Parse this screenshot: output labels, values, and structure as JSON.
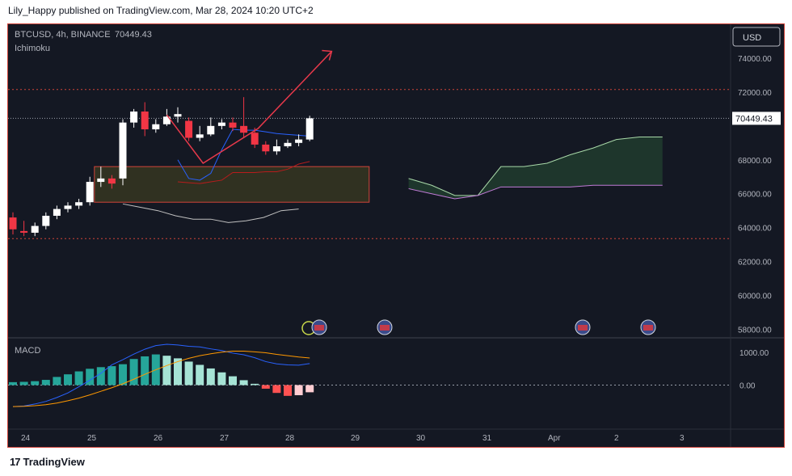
{
  "header": {
    "text": "Lily_Happy published on TradingView.com, Mar 28, 2024 10:20 UTC+2"
  },
  "footer": {
    "logo": "17",
    "brand": "TradingView"
  },
  "colors": {
    "background": "#141823",
    "up_candle": "#ffffff",
    "down_candle": "#f23645",
    "price_axis_text": "#b2b5be",
    "arrow": "#e8394b",
    "cloud_bull": "#1f3a2e",
    "cloud_bear": "#3a3026",
    "kumo_box": "#4a4a2a",
    "lagging": "#c0c0c0",
    "macd_line": "#2962ff",
    "signal_line": "#ff9800",
    "hist_pos": "#a6e3d5",
    "hist_pos_strong": "#26a69a",
    "hist_neg": "#ff5252",
    "hist_neg_weak": "#ffcdd2"
  },
  "chart_data": [
    {
      "type": "candlestick",
      "title": "BTCUSD, 4h, BINANCE",
      "last_value": "70449.43",
      "indicator_label": "Ichimoku",
      "currency": "USD",
      "price_axis_labels": [
        "74000.00",
        "72000.00",
        "70449.43",
        "68000.00",
        "66000.00",
        "64000.00",
        "62000.00",
        "60000.00",
        "58000.00"
      ],
      "time_axis_labels": [
        "24",
        "25",
        "26",
        "27",
        "28",
        "29",
        "30",
        "31",
        "Apr",
        "2",
        "3"
      ],
      "ylim": [
        57500,
        76000
      ],
      "x": [
        "Mar 23 20:00",
        "Mar 24 00:00",
        "Mar 24 04:00",
        "Mar 24 08:00",
        "Mar 24 12:00",
        "Mar 24 16:00",
        "Mar 24 20:00",
        "Mar 25 00:00",
        "Mar 25 04:00",
        "Mar 25 08:00",
        "Mar 25 12:00",
        "Mar 25 16:00",
        "Mar 25 20:00",
        "Mar 26 00:00",
        "Mar 26 04:00",
        "Mar 26 08:00",
        "Mar 26 12:00",
        "Mar 26 16:00",
        "Mar 26 20:00",
        "Mar 27 00:00",
        "Mar 27 04:00",
        "Mar 27 08:00",
        "Mar 27 12:00",
        "Mar 27 16:00",
        "Mar 27 20:00",
        "Mar 28 00:00",
        "Mar 28 04:00",
        "Mar 28 08:00"
      ],
      "open": [
        64600,
        63800,
        63700,
        64100,
        64700,
        65100,
        65300,
        65500,
        66700,
        66900,
        66900,
        70200,
        70850,
        69800,
        70100,
        70550,
        70300,
        69300,
        69500,
        70000,
        70200,
        70000,
        69600,
        68900,
        68500,
        68800,
        69000,
        69200
      ],
      "close": [
        63900,
        63700,
        64100,
        64700,
        65100,
        65300,
        65500,
        66700,
        66900,
        66600,
        70200,
        70850,
        69800,
        70100,
        70550,
        70700,
        69300,
        69500,
        70000,
        70200,
        69900,
        69600,
        68900,
        68500,
        68800,
        69000,
        69200,
        70449.43
      ],
      "high": [
        64900,
        64400,
        64300,
        64900,
        65300,
        65500,
        65700,
        67000,
        67600,
        67100,
        70400,
        71000,
        71400,
        70400,
        71000,
        71100,
        70500,
        70000,
        70500,
        70400,
        70500,
        71700,
        69900,
        69100,
        69200,
        69200,
        69500,
        70600
      ],
      "low": [
        63600,
        63500,
        63500,
        63900,
        64500,
        64900,
        65100,
        65300,
        66400,
        66300,
        66500,
        69900,
        69400,
        69600,
        70000,
        70200,
        69100,
        69100,
        69400,
        69800,
        69700,
        69300,
        68700,
        68300,
        68300,
        68700,
        68800,
        69100
      ],
      "ichimoku": {
        "tenkan": [
          68000,
          66900,
          66800,
          67200,
          68600,
          69800,
          69750,
          69750,
          69650,
          69550,
          69500,
          69450,
          69400
        ],
        "kijun": [
          66700,
          66650,
          66600,
          66700,
          66800,
          67250,
          67250,
          67250,
          67300,
          67300,
          67450,
          67750,
          67900
        ],
        "span_a_future": [
          66900,
          66500,
          65900,
          65900,
          67600,
          67600,
          67800,
          68300,
          68700,
          69200,
          69350,
          69350
        ],
        "span_b_future": [
          66300,
          66000,
          65700,
          65900,
          66400,
          66400,
          66400,
          66400,
          66500,
          66500,
          66500,
          66500
        ],
        "lagging": [
          65400,
          65200,
          65000,
          64700,
          64500,
          64500,
          64300,
          64400,
          64600,
          65000,
          65100
        ]
      },
      "annotations": {
        "arrow_note": "hand-drawn zigzag and projection arrow"
      }
    },
    {
      "type": "macd",
      "title": "MACD",
      "axis_labels": [
        "1000.00",
        "0.00"
      ],
      "ylim": [
        -1300,
        1350
      ],
      "histogram": [
        90,
        100,
        120,
        160,
        250,
        330,
        420,
        500,
        550,
        580,
        640,
        800,
        880,
        940,
        900,
        820,
        720,
        620,
        510,
        390,
        270,
        150,
        40,
        -110,
        -240,
        -330,
        -310,
        -220
      ],
      "macd": [
        -660,
        -640,
        -580,
        -500,
        -380,
        -240,
        -50,
        150,
        360,
        620,
        780,
        950,
        1100,
        1210,
        1250,
        1230,
        1190,
        1170,
        1110,
        1060,
        980,
        930,
        840,
        720,
        650,
        620,
        610,
        660
      ],
      "signal": [
        -660,
        -650,
        -630,
        -600,
        -550,
        -480,
        -400,
        -300,
        -190,
        -80,
        40,
        180,
        330,
        470,
        600,
        720,
        820,
        900,
        960,
        1010,
        1040,
        1040,
        1020,
        990,
        940,
        900,
        860,
        830
      ]
    }
  ]
}
